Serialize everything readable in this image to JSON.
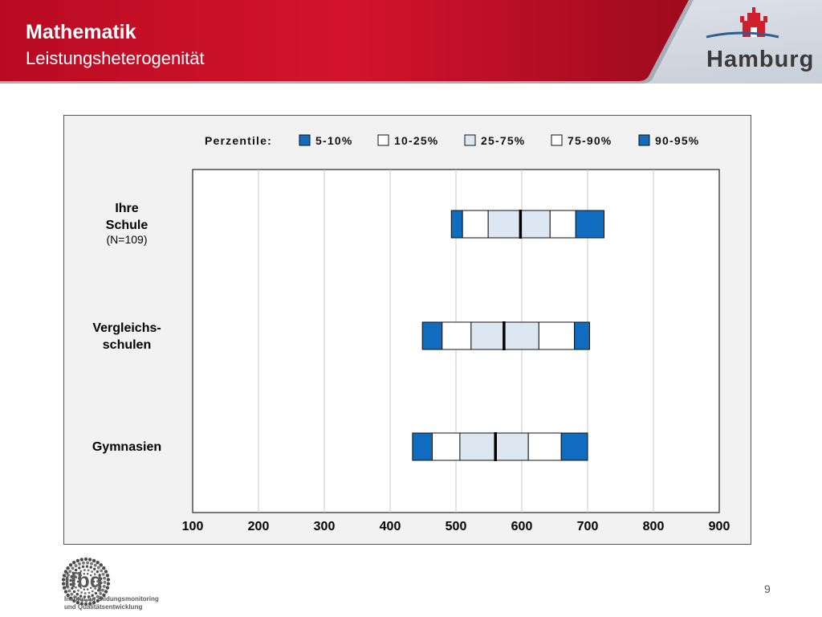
{
  "header": {
    "title": "Mathematik",
    "subtitle": "Leistungsheterogenität",
    "city": "Hamburg"
  },
  "footer": {
    "institute_short": "ifbq",
    "institute_line1": "Institut für Bildungsmonitoring",
    "institute_line2": "und Qualitätsentwicklung",
    "page_number": "9"
  },
  "colors": {
    "header_red": "#c8102e",
    "header_dark_red": "#9e0a1e",
    "dark_blue": "#0f6cbe",
    "light_blue": "#dde7f2",
    "white": "#ffffff",
    "hamburg_red": "#d0202e",
    "hamburg_blue": "#2e5d8e"
  },
  "chart_data": {
    "type": "percentile_band",
    "legend_title": "Perzentile:",
    "legend": [
      {
        "label": "5-10%",
        "color": "#0f6cbe"
      },
      {
        "label": "10-25%",
        "color": "#ffffff"
      },
      {
        "label": "25-75%",
        "color": "#dde7f2"
      },
      {
        "label": "75-90%",
        "color": "#ffffff"
      },
      {
        "label": "90-95%",
        "color": "#0f6cbe"
      }
    ],
    "xlim": [
      100,
      900
    ],
    "xticks": [
      "100",
      "200",
      "300",
      "400",
      "500",
      "600",
      "700",
      "800",
      "900"
    ],
    "grid": true,
    "series": [
      {
        "label_lines": [
          "Ihre",
          "Schule"
        ],
        "note": "(N=109)",
        "p5": 493,
        "p10": 510,
        "p25": 549,
        "median": 598,
        "p75": 643,
        "p90": 682,
        "p95": 725
      },
      {
        "label_lines": [
          "Vergleichs-",
          "schulen"
        ],
        "note": "",
        "p5": 449,
        "p10": 479,
        "p25": 523,
        "median": 573,
        "p75": 626,
        "p90": 680,
        "p95": 703
      },
      {
        "label_lines": [
          "Gymnasien"
        ],
        "note": "",
        "p5": 434,
        "p10": 464,
        "p25": 506,
        "median": 560,
        "p75": 610,
        "p90": 660,
        "p95": 700
      }
    ]
  }
}
